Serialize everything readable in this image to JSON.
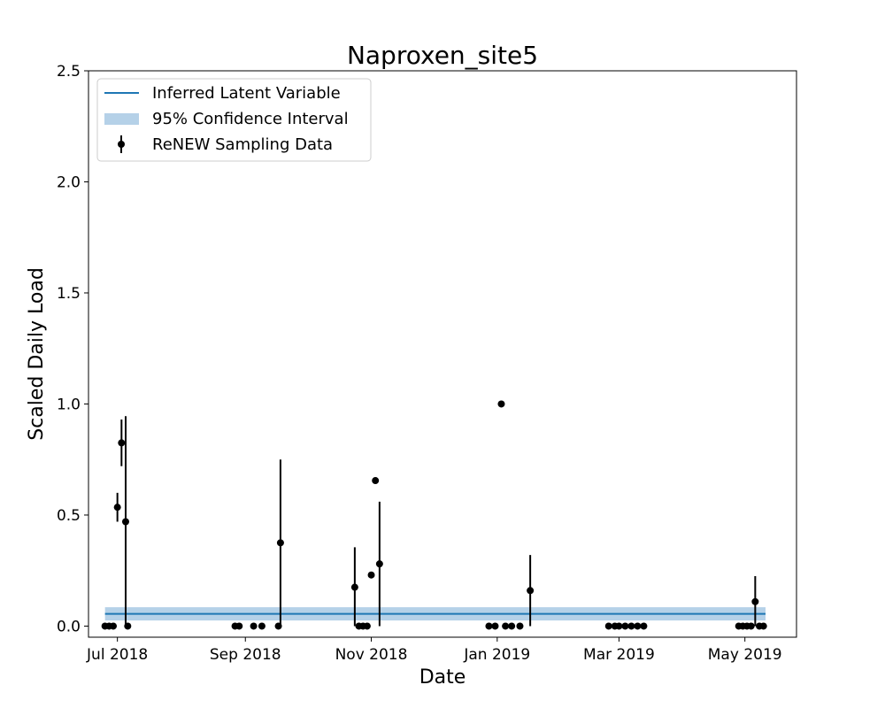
{
  "chart_data": {
    "type": "scatter",
    "title": "Naproxen_site5",
    "xlabel": "Date",
    "ylabel": "Scaled Daily Load",
    "xlim": [
      "2018-06-17",
      "2019-05-26"
    ],
    "ylim": [
      -0.05,
      2.5
    ],
    "grid": false,
    "legend_position": "top-left",
    "x_ticks": [
      {
        "date": "2018-07-01",
        "label": "Jul 2018"
      },
      {
        "date": "2018-09-01",
        "label": "Sep 2018"
      },
      {
        "date": "2018-11-01",
        "label": "Nov 2018"
      },
      {
        "date": "2019-01-01",
        "label": "Jan 2019"
      },
      {
        "date": "2019-03-01",
        "label": "Mar 2019"
      },
      {
        "date": "2019-05-01",
        "label": "May 2019"
      }
    ],
    "y_ticks": [
      {
        "value": 0.0,
        "label": "0.0"
      },
      {
        "value": 0.5,
        "label": "0.5"
      },
      {
        "value": 1.0,
        "label": "1.0"
      },
      {
        "value": 1.5,
        "label": "1.5"
      },
      {
        "value": 2.0,
        "label": "2.0"
      },
      {
        "value": 2.5,
        "label": "2.5"
      }
    ],
    "legend": [
      {
        "label": "Inferred Latent Variable",
        "kind": "line"
      },
      {
        "label": "95% Confidence Interval",
        "kind": "band"
      },
      {
        "label": "ReNEW Sampling Data",
        "kind": "errorbar"
      }
    ],
    "latent": {
      "x": [
        "2018-06-25",
        "2019-05-11"
      ],
      "y": [
        0.055,
        0.055
      ],
      "lower": [
        0.025,
        0.025
      ],
      "upper": [
        0.085,
        0.085
      ]
    },
    "samples": [
      {
        "x": "2018-06-25",
        "y": 0.0
      },
      {
        "x": "2018-06-27",
        "y": 0.0
      },
      {
        "x": "2018-06-29",
        "y": 0.0
      },
      {
        "x": "2018-07-01",
        "y": 0.535,
        "ylo": 0.47,
        "yhi": 0.6
      },
      {
        "x": "2018-07-03",
        "y": 0.825,
        "ylo": 0.72,
        "yhi": 0.93
      },
      {
        "x": "2018-07-05",
        "y": 0.47,
        "ylo": 0.0,
        "yhi": 0.945
      },
      {
        "x": "2018-07-06",
        "y": 0.0
      },
      {
        "x": "2018-08-27",
        "y": 0.0
      },
      {
        "x": "2018-08-29",
        "y": 0.0
      },
      {
        "x": "2018-09-05",
        "y": 0.0
      },
      {
        "x": "2018-09-09",
        "y": 0.0
      },
      {
        "x": "2018-09-17",
        "y": 0.0
      },
      {
        "x": "2018-09-18",
        "y": 0.375,
        "ylo": 0.0,
        "yhi": 0.75
      },
      {
        "x": "2018-10-24",
        "y": 0.175,
        "ylo": 0.0,
        "yhi": 0.355
      },
      {
        "x": "2018-10-26",
        "y": 0.0
      },
      {
        "x": "2018-10-28",
        "y": 0.0
      },
      {
        "x": "2018-10-30",
        "y": 0.0
      },
      {
        "x": "2018-11-01",
        "y": 0.23
      },
      {
        "x": "2018-11-03",
        "y": 0.655
      },
      {
        "x": "2018-11-05",
        "y": 0.28,
        "ylo": 0.0,
        "yhi": 0.56
      },
      {
        "x": "2018-12-28",
        "y": 0.0
      },
      {
        "x": "2018-12-31",
        "y": 0.0
      },
      {
        "x": "2019-01-03",
        "y": 1.0
      },
      {
        "x": "2019-01-05",
        "y": 0.0
      },
      {
        "x": "2019-01-08",
        "y": 0.0
      },
      {
        "x": "2019-01-12",
        "y": 0.0
      },
      {
        "x": "2019-01-17",
        "y": 0.16,
        "ylo": 0.0,
        "yhi": 0.32
      },
      {
        "x": "2019-02-24",
        "y": 0.0
      },
      {
        "x": "2019-02-27",
        "y": 0.0
      },
      {
        "x": "2019-03-01",
        "y": 0.0
      },
      {
        "x": "2019-03-04",
        "y": 0.0
      },
      {
        "x": "2019-03-07",
        "y": 0.0
      },
      {
        "x": "2019-03-10",
        "y": 0.0
      },
      {
        "x": "2019-03-13",
        "y": 0.0
      },
      {
        "x": "2019-04-28",
        "y": 0.0
      },
      {
        "x": "2019-04-30",
        "y": 0.0
      },
      {
        "x": "2019-05-02",
        "y": 0.0
      },
      {
        "x": "2019-05-04",
        "y": 0.0
      },
      {
        "x": "2019-05-06",
        "y": 0.11,
        "ylo": 0.0,
        "yhi": 0.225
      },
      {
        "x": "2019-05-08",
        "y": 0.0
      },
      {
        "x": "2019-05-10",
        "y": 0.0
      }
    ],
    "colors": {
      "line": "#1f77b4",
      "band": "#b5d1e8",
      "points": "#000000",
      "axes": "#000000"
    }
  }
}
